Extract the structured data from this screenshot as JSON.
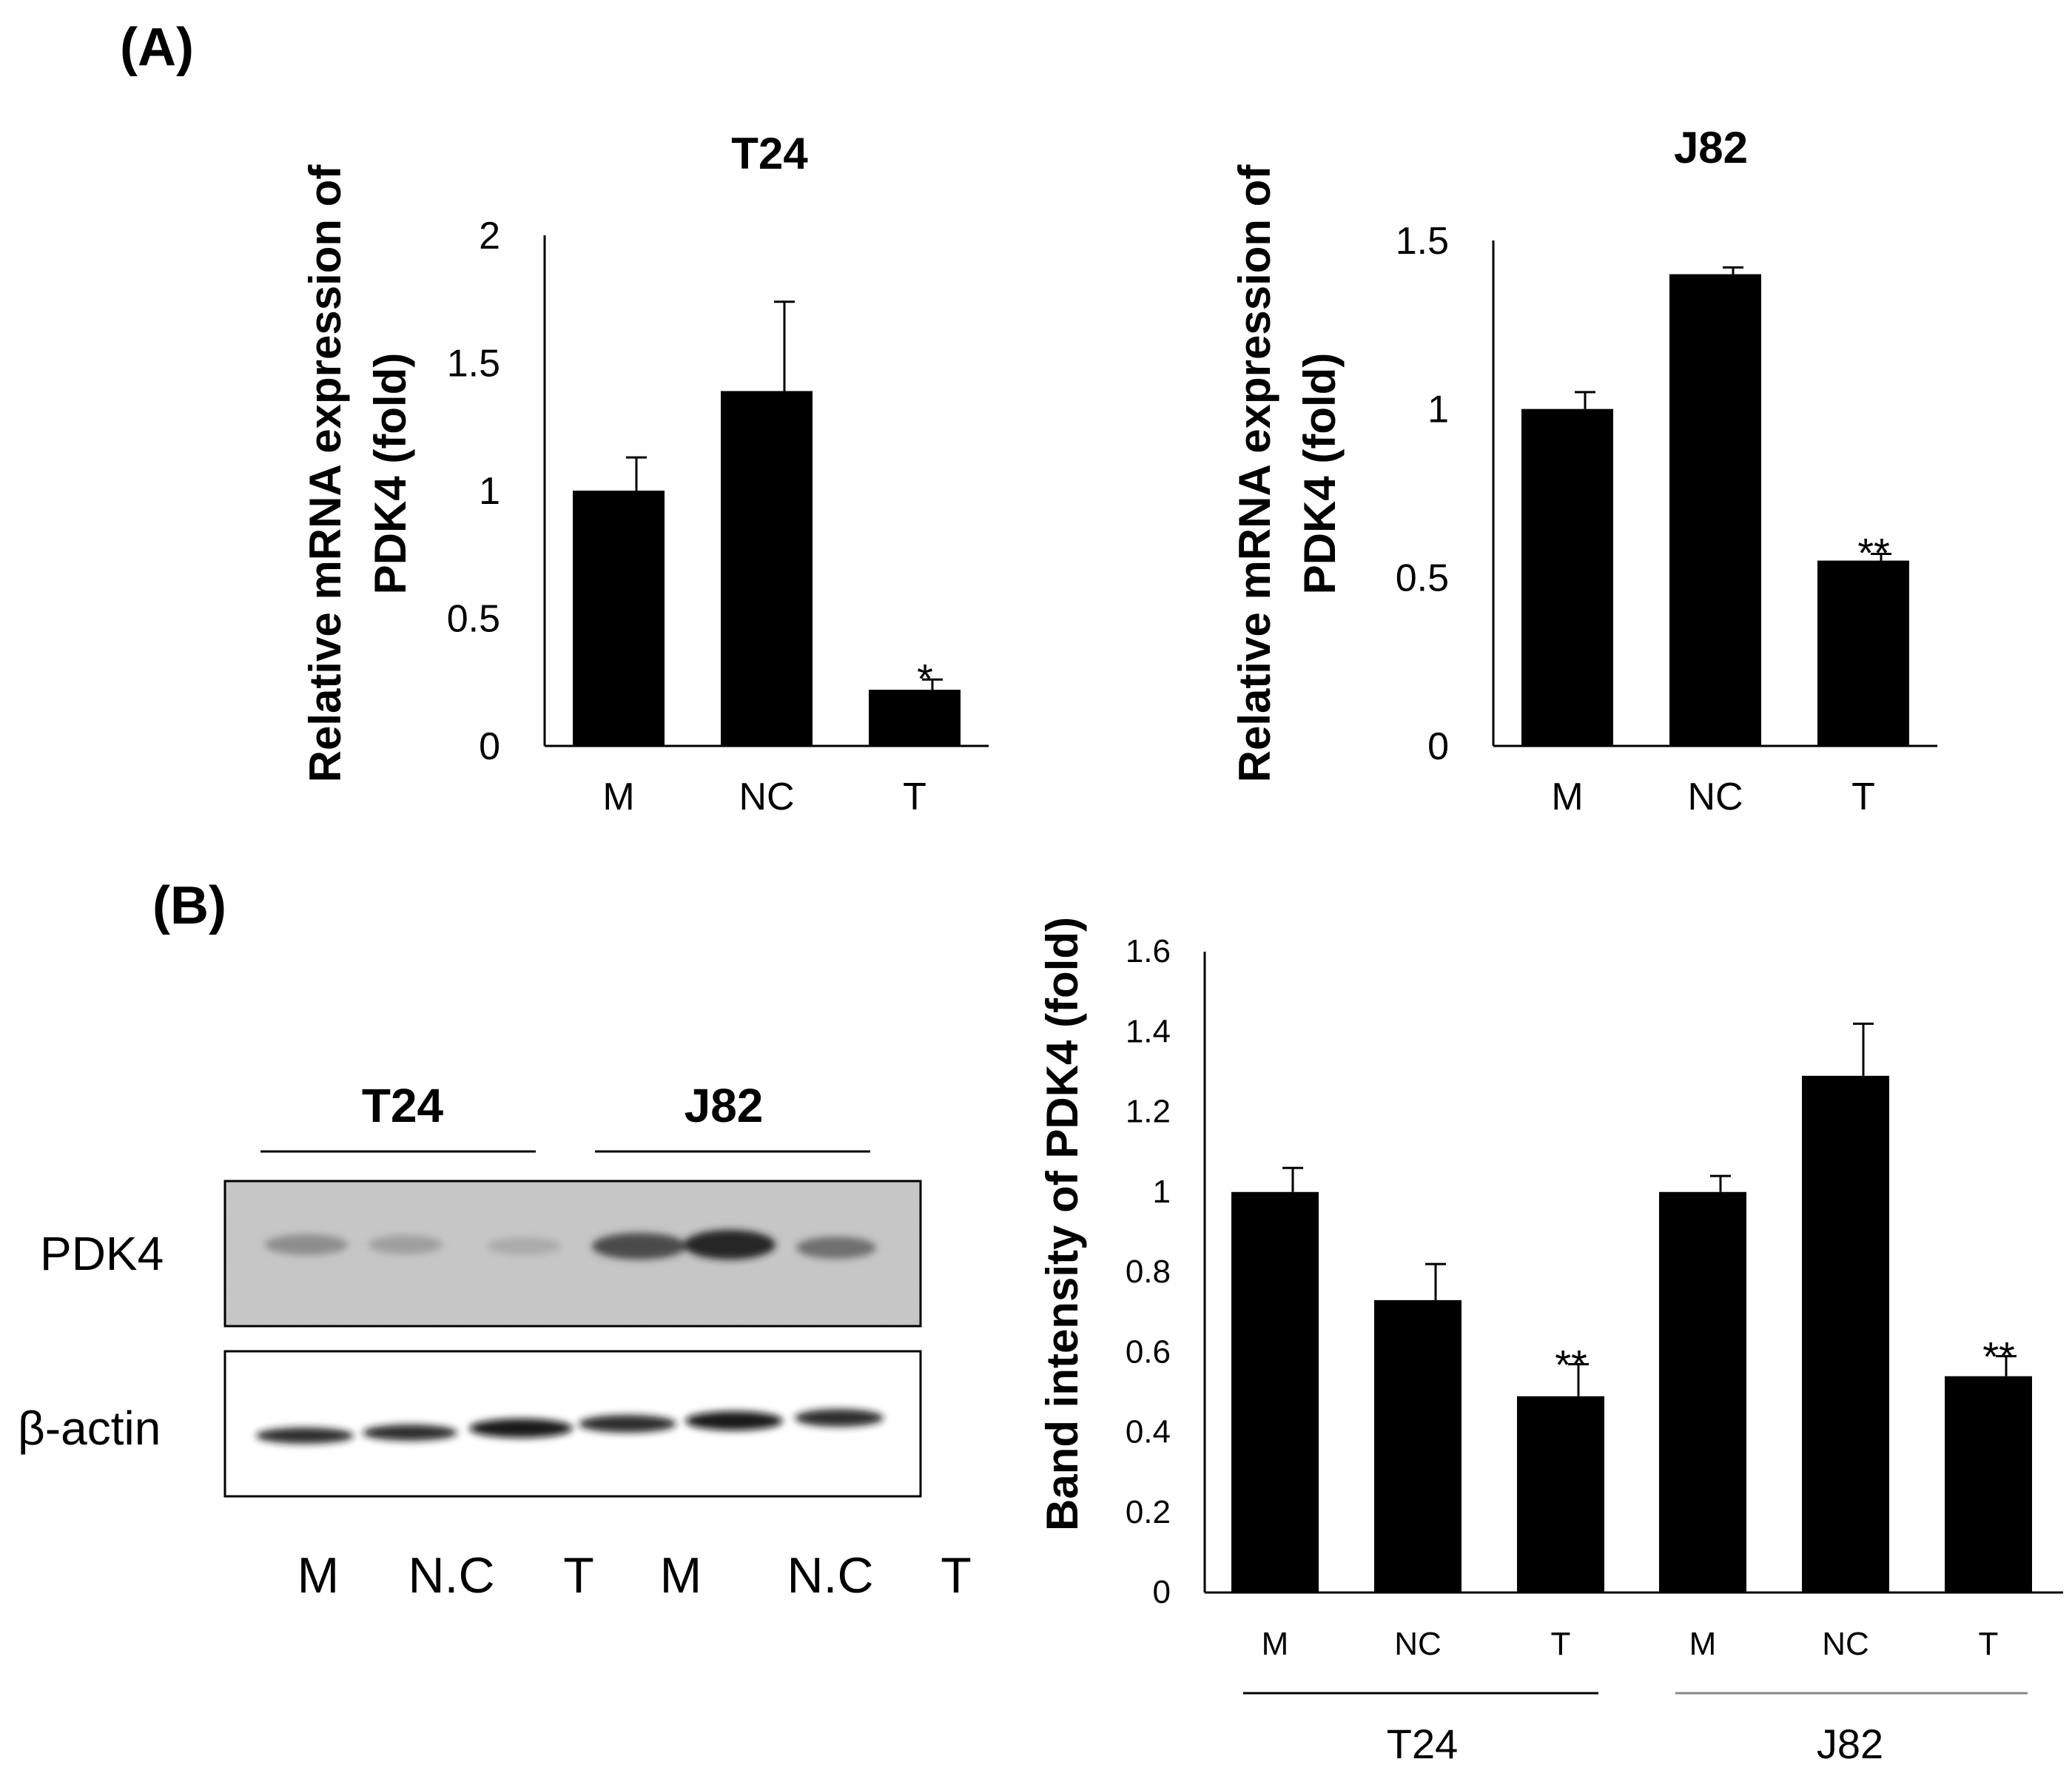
{
  "panels": {
    "a": "(A)",
    "b": "(B)"
  },
  "blot": {
    "cell_lines": [
      "T24",
      "J82"
    ],
    "rows": [
      "PDK4",
      "β-actin"
    ],
    "lanes": [
      "M",
      "N.C",
      "T",
      "M",
      "N.C",
      "T"
    ]
  },
  "chart_data": [
    {
      "id": "t24-mrna",
      "type": "bar",
      "title": "T24",
      "categories": [
        "M",
        "NC",
        "T"
      ],
      "values": [
        1.0,
        1.39,
        0.22
      ],
      "errors": [
        0.13,
        0.35,
        0.04
      ],
      "significance": [
        "",
        "",
        "*"
      ],
      "yticks": [
        "0",
        "0.5",
        "1",
        "1.5",
        "2"
      ],
      "ylim": [
        0,
        2
      ],
      "xlabel": "",
      "ylabel_lines": [
        "Relative mRNA expression of",
        "PDK4 (fold)"
      ]
    },
    {
      "id": "j82-mrna",
      "type": "bar",
      "title": "J82",
      "categories": [
        "M",
        "NC",
        "T"
      ],
      "values": [
        1.0,
        1.4,
        0.55
      ],
      "errors": [
        0.05,
        0.02,
        0.02
      ],
      "significance": [
        "",
        "",
        "**"
      ],
      "yticks": [
        "0",
        "0.5",
        "1",
        "1.5"
      ],
      "ylim": [
        0,
        1.5
      ],
      "xlabel": "",
      "ylabel_lines": [
        "Relative mRNA expression of",
        "PDK4 (fold)"
      ]
    },
    {
      "id": "band-intensity",
      "type": "bar",
      "title": "",
      "categories": [
        "M",
        "NC",
        "T",
        "M",
        "NC",
        "T"
      ],
      "groups": [
        "T24",
        "J82"
      ],
      "values": [
        1.0,
        0.73,
        0.49,
        1.0,
        1.29,
        0.54
      ],
      "errors": [
        0.06,
        0.09,
        0.08,
        0.04,
        0.13,
        0.05
      ],
      "significance": [
        "",
        "",
        "**",
        "",
        "",
        "**"
      ],
      "yticks": [
        "0",
        "0.2",
        "0.4",
        "0.6",
        "0.8",
        "1",
        "1.2",
        "1.4",
        "1.6"
      ],
      "ylim": [
        0,
        1.6
      ],
      "xlabel": "",
      "ylabel_lines": [
        "Band intensity of PDK4 (fold)"
      ]
    }
  ]
}
